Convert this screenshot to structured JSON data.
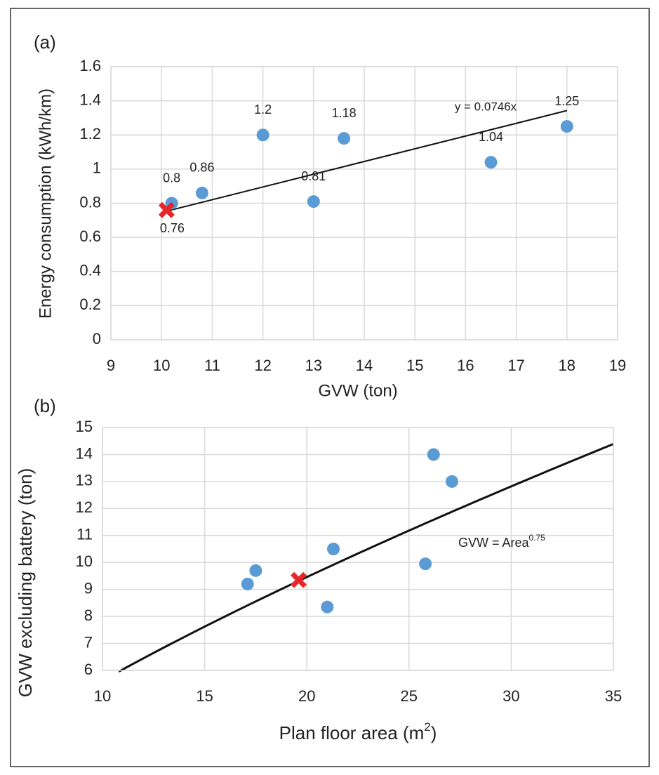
{
  "chart_data": [
    {
      "type": "scatter",
      "panel_label": "(a)",
      "xlabel": "GVW (ton)",
      "ylabel": "Energy consumption (kWh/km)",
      "x": [
        10.2,
        10.8,
        12,
        13,
        13.6,
        16.5,
        18
      ],
      "values": [
        0.8,
        0.86,
        1.2,
        0.81,
        1.18,
        1.04,
        1.25
      ],
      "color": "#5b9bd5",
      "data_labels": true,
      "highlight": {
        "x": 10.1,
        "y": 0.76,
        "color": "#e8262a"
      },
      "trendline": {
        "label": "y = 0.0746x",
        "slope": 0.0746,
        "x": [
          10.1,
          18
        ]
      },
      "xlim": [
        9,
        19
      ],
      "xticks": [
        9,
        10,
        11,
        12,
        13,
        14,
        15,
        16,
        17,
        18,
        19
      ],
      "ylim": [
        0,
        1.6
      ],
      "yticks": [
        0,
        0.2,
        0.4,
        0.6,
        0.8,
        1,
        1.2,
        1.4,
        1.6
      ],
      "grid": true
    },
    {
      "type": "scatter",
      "panel_label": "(b)",
      "xlabel_parts": [
        "Plan floor area (m",
        "2",
        ")"
      ],
      "ylabel": "GVW excluding battery (ton)",
      "x": [
        17.1,
        17.5,
        21.3,
        21,
        26.2,
        27.1,
        25.8
      ],
      "values": [
        9.2,
        9.7,
        10.5,
        8.35,
        14,
        13,
        9.95
      ],
      "color": "#5b9bd5",
      "highlight": {
        "x": 19.6,
        "y": 9.35,
        "color": "#e8262a"
      },
      "curve": {
        "label": "GVW = Area",
        "exponent": 0.75,
        "x": [
          10.8,
          35
        ]
      },
      "xlim": [
        10,
        35
      ],
      "xticks": [
        10,
        15,
        20,
        25,
        30,
        35
      ],
      "ylim": [
        6,
        15
      ],
      "yticks": [
        6,
        7,
        8,
        9,
        10,
        11,
        12,
        13,
        14,
        15
      ],
      "grid": true
    }
  ]
}
